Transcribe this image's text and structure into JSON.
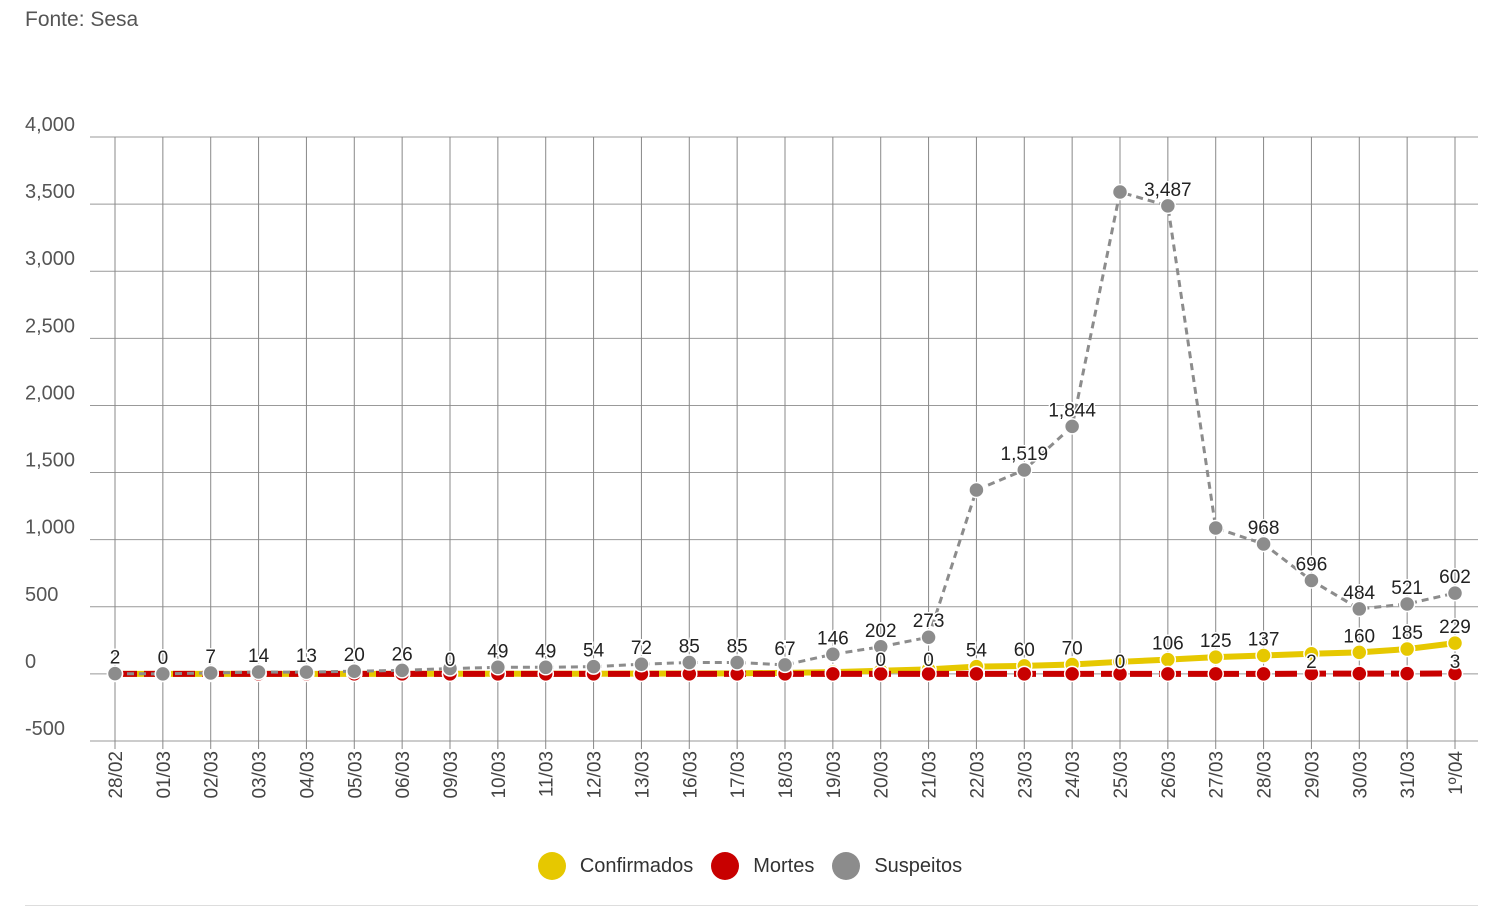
{
  "source": "Fonte: Sesa",
  "chart_data": {
    "type": "line",
    "title": "",
    "xlabel": "",
    "ylabel": "",
    "ylim": [
      -500,
      4000
    ],
    "yticks": [
      -500,
      0,
      500,
      1000,
      1500,
      2000,
      2500,
      3000,
      3500,
      4000
    ],
    "ytick_labels": [
      "-500",
      "0",
      "500",
      "1,000",
      "1,500",
      "2,000",
      "2,500",
      "3,000",
      "3,500",
      "4,000"
    ],
    "grid": true,
    "legend_position": "bottom",
    "categories": [
      "28/02",
      "01/03",
      "02/03",
      "03/03",
      "04/03",
      "05/03",
      "06/03",
      "09/03",
      "10/03",
      "11/03",
      "12/03",
      "13/03",
      "16/03",
      "17/03",
      "18/03",
      "19/03",
      "20/03",
      "21/03",
      "22/03",
      "23/03",
      "24/03",
      "25/03",
      "26/03",
      "27/03",
      "28/03",
      "29/03",
      "30/03",
      "31/03",
      "1º/04"
    ],
    "series": [
      {
        "name": "Confirmados",
        "color": "#e6c800",
        "dashed": false,
        "values": [
          0,
          0,
          0,
          0,
          0,
          0,
          0,
          1,
          1,
          1,
          1,
          2,
          3,
          4,
          8,
          13,
          23,
          34,
          54,
          60,
          70,
          90,
          106,
          125,
          137,
          150,
          160,
          185,
          229
        ],
        "labels": [
          null,
          null,
          null,
          null,
          null,
          null,
          null,
          null,
          null,
          null,
          null,
          null,
          null,
          null,
          null,
          null,
          null,
          null,
          "54",
          "60",
          "70",
          null,
          "106",
          "125",
          "137",
          null,
          "160",
          "185",
          "229"
        ]
      },
      {
        "name": "Mortes",
        "color": "#c80000",
        "dashed": true,
        "values": [
          0,
          0,
          0,
          0,
          0,
          0,
          0,
          0,
          0,
          0,
          0,
          0,
          0,
          0,
          0,
          0,
          0,
          0,
          0,
          0,
          0,
          0,
          0,
          0,
          0,
          2,
          2,
          2,
          3
        ],
        "labels": [
          null,
          null,
          null,
          null,
          null,
          null,
          null,
          "0",
          null,
          null,
          null,
          null,
          null,
          null,
          null,
          null,
          "0",
          "0",
          null,
          null,
          null,
          "0",
          null,
          null,
          null,
          "2",
          null,
          null,
          "3"
        ]
      },
      {
        "name": "Suspeitos",
        "color": "#8c8c8c",
        "dashed": true,
        "values": [
          2,
          0,
          7,
          14,
          13,
          20,
          26,
          40,
          49,
          49,
          54,
          72,
          85,
          85,
          67,
          146,
          202,
          273,
          1370,
          1519,
          1844,
          3590,
          3487,
          1087,
          968,
          696,
          484,
          521,
          602
        ],
        "labels": [
          "2",
          "0",
          "7",
          "14",
          "13",
          "20",
          "26",
          null,
          "49",
          "49",
          "54",
          "72",
          "85",
          "85",
          "67",
          "146",
          "202",
          "273",
          null,
          "1,519",
          "1,844",
          null,
          "3,487",
          null,
          "968",
          "696",
          "484",
          "521",
          "602"
        ]
      }
    ]
  }
}
